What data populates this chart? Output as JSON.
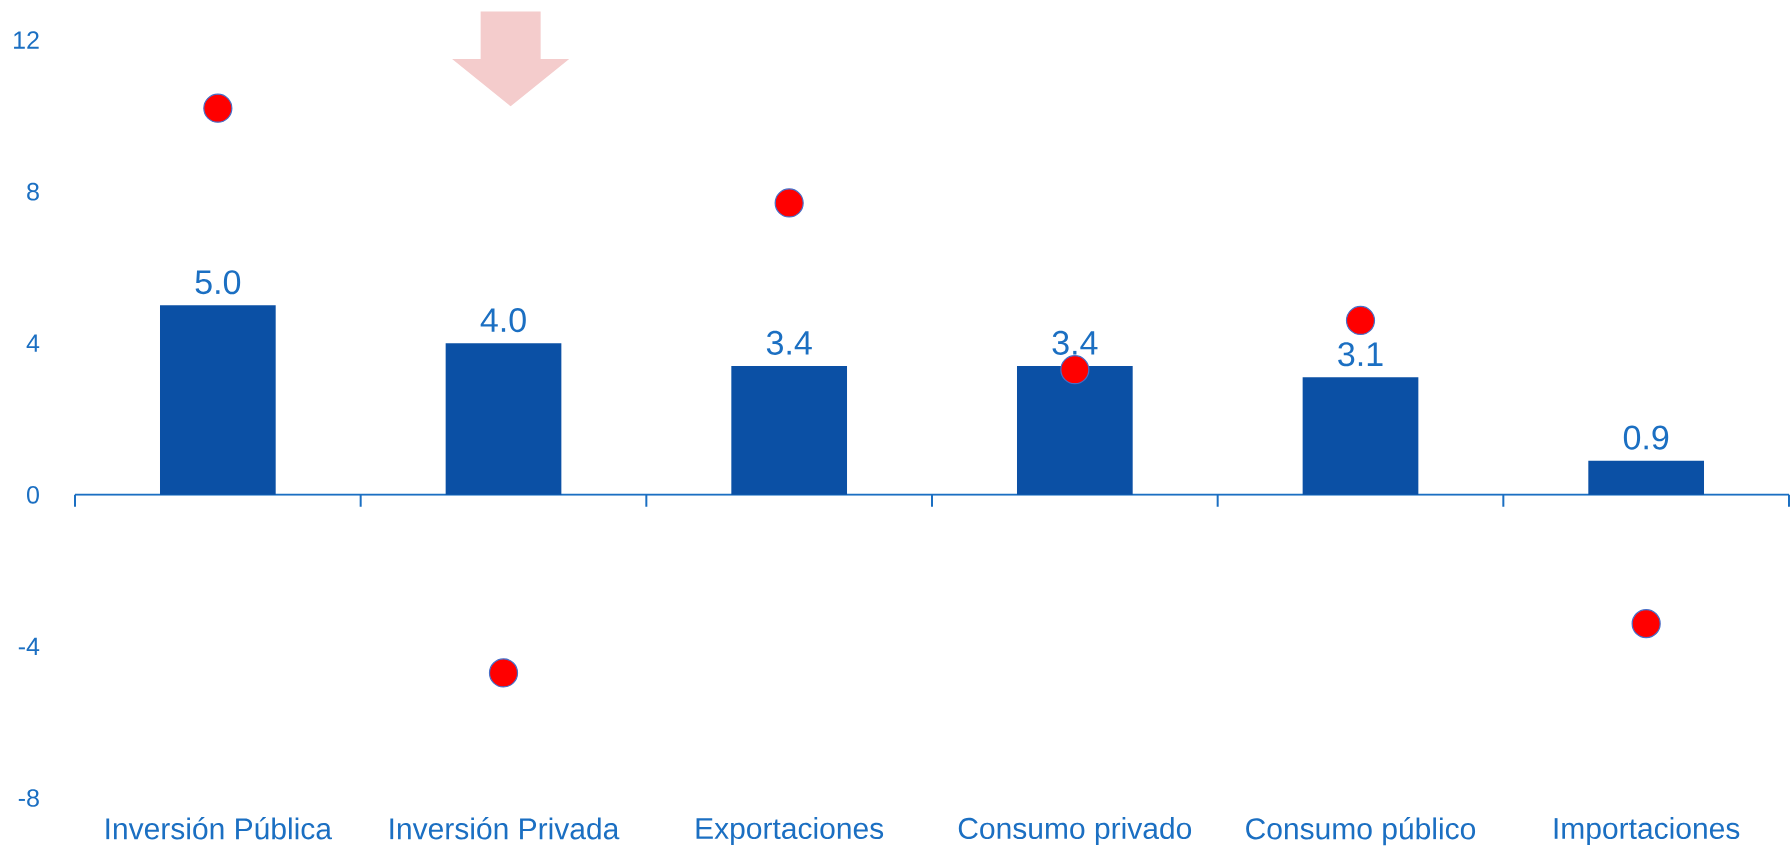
{
  "chart_data": {
    "type": "bar",
    "categories": [
      "Inversión Pública",
      "Inversión Privada",
      "Exportaciones",
      "Consumo privado",
      "Consumo público",
      "Importaciones"
    ],
    "series": [
      {
        "color": "#0b50a5",
        "values": [
          5.0,
          4.0,
          3.4,
          3.4,
          3.1,
          0.9
        ],
        "value_labels": [
          "5.0",
          "4.0",
          "3.4",
          "3.4",
          "3.1",
          "0.9"
        ]
      },
      {
        "type": "scatter",
        "color": "#ff0000",
        "x": [
          "Inversión Pública",
          "Inversión Privada",
          "Exportaciones",
          "Consumo privado",
          "Consumo público",
          "Importaciones"
        ],
        "values": [
          10.2,
          -4.7,
          7.7,
          3.3,
          4.6,
          -3.4
        ]
      }
    ],
    "ylim": [
      -8,
      12
    ],
    "yticks": [
      -8,
      -4,
      0,
      4,
      8,
      12
    ],
    "marker": "circle",
    "ref_lines": [
      {
        "axis": "y",
        "value": 0,
        "color": "#1b6fc2"
      }
    ]
  }
}
